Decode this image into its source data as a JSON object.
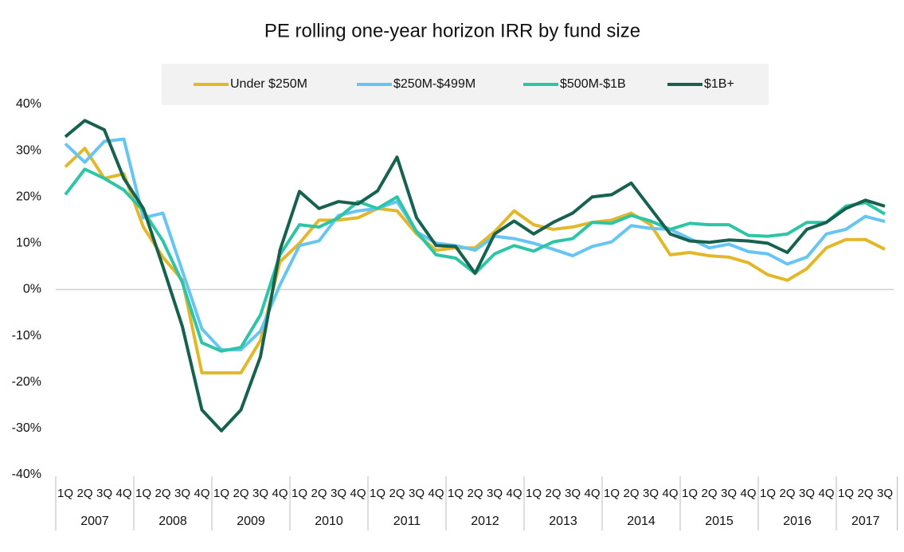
{
  "chart_data": {
    "type": "line",
    "title": "PE rolling one-year horizon IRR by fund size",
    "groups": [
      {
        "label": "2007",
        "quarters": [
          "1Q",
          "2Q",
          "3Q",
          "4Q"
        ]
      },
      {
        "label": "2008",
        "quarters": [
          "1Q",
          "2Q",
          "3Q",
          "4Q"
        ]
      },
      {
        "label": "2009",
        "quarters": [
          "1Q",
          "2Q",
          "3Q",
          "4Q"
        ]
      },
      {
        "label": "2010",
        "quarters": [
          "1Q",
          "2Q",
          "3Q",
          "4Q"
        ]
      },
      {
        "label": "2011",
        "quarters": [
          "1Q",
          "2Q",
          "3Q",
          "4Q"
        ]
      },
      {
        "label": "2012",
        "quarters": [
          "1Q",
          "2Q",
          "3Q",
          "4Q"
        ]
      },
      {
        "label": "2013",
        "quarters": [
          "1Q",
          "2Q",
          "3Q",
          "4Q"
        ]
      },
      {
        "label": "2014",
        "quarters": [
          "1Q",
          "2Q",
          "3Q",
          "4Q"
        ]
      },
      {
        "label": "2015",
        "quarters": [
          "1Q",
          "2Q",
          "3Q",
          "4Q"
        ]
      },
      {
        "label": "2016",
        "quarters": [
          "1Q",
          "2Q",
          "3Q",
          "4Q"
        ]
      },
      {
        "label": "2017",
        "quarters": [
          "1Q",
          "2Q",
          "3Q"
        ]
      }
    ],
    "series": [
      {
        "name": "Under $250M",
        "color": "#e2b828",
        "values": [
          26.5,
          30.5,
          24,
          25,
          13.5,
          7,
          2,
          -18,
          -18,
          -18,
          -11,
          6,
          10,
          15,
          15,
          15.5,
          17.5,
          17,
          12,
          8.5,
          9,
          9,
          12.5,
          17,
          14,
          13,
          13.5,
          14.5,
          15,
          16.5,
          14,
          7.5,
          8,
          7.3,
          7,
          5.8,
          3.2,
          2,
          4.5,
          9,
          10.8,
          10.8,
          8.7
        ]
      },
      {
        "name": "$250M-$499M",
        "color": "#67c5f4",
        "values": [
          31.5,
          27.5,
          32,
          32.5,
          15.5,
          16.5,
          4,
          -8.5,
          -13,
          -13,
          -9,
          1,
          9.5,
          10.5,
          16,
          17,
          17.5,
          19,
          12.5,
          10,
          9.5,
          8.5,
          11.5,
          11,
          10,
          8.7,
          7.3,
          9.3,
          10.3,
          13.8,
          13.2,
          13,
          11,
          9,
          9.8,
          8.2,
          7.7,
          5.5,
          7,
          12,
          13,
          15.8,
          14.7
        ]
      },
      {
        "name": "$500M-$1B",
        "color": "#2ec5a7",
        "values": [
          20.5,
          26,
          24,
          21.5,
          17,
          10.5,
          1.5,
          -11.5,
          -13.3,
          -12.5,
          -5.5,
          7.5,
          14,
          13.5,
          15.5,
          19,
          17.5,
          20,
          12.5,
          7.5,
          6.8,
          3.5,
          7.7,
          9.5,
          8.3,
          10.3,
          11,
          14.5,
          14.3,
          16,
          14.8,
          13,
          14.3,
          14,
          14,
          11.7,
          11.5,
          12,
          14.5,
          14.5,
          18,
          18.8,
          16.3
        ]
      },
      {
        "name": "$1B+",
        "color": "#17614f",
        "values": [
          33,
          36.5,
          34.5,
          24,
          17.5,
          5,
          -8,
          -26,
          -30.5,
          -26,
          -14.5,
          8.5,
          21.2,
          17.5,
          19,
          18.5,
          21.3,
          28.6,
          15.5,
          9.5,
          9.3,
          3.5,
          12,
          14.8,
          12,
          14.5,
          16.5,
          20,
          20.5,
          23,
          17.5,
          12,
          10.5,
          10.2,
          10.7,
          10.5,
          10,
          8,
          13,
          14.5,
          17.5,
          19.3,
          18
        ]
      }
    ],
    "ylim": [
      -40,
      40
    ],
    "yticks": [
      {
        "value": -40,
        "label": "-40%"
      },
      {
        "value": -30,
        "label": "-30%"
      },
      {
        "value": -20,
        "label": "-20%"
      },
      {
        "value": -10,
        "label": "-10%"
      },
      {
        "value": 0,
        "label": "0%"
      },
      {
        "value": 10,
        "label": "10%"
      },
      {
        "value": 20,
        "label": "20%"
      },
      {
        "value": 30,
        "label": "30%"
      },
      {
        "value": 40,
        "label": "40%"
      }
    ],
    "grid": false,
    "legend": "top"
  }
}
